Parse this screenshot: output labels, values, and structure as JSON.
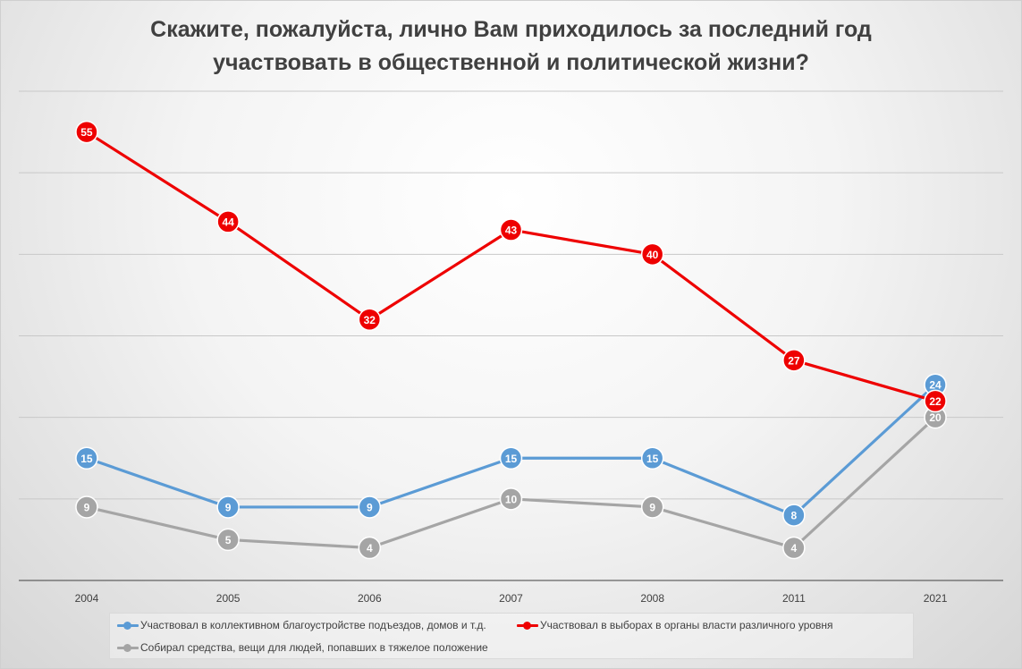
{
  "chart_data": {
    "type": "line",
    "title_lines": [
      "Скажите, пожалуйста, лично Вам приходилось за последний год",
      "участвовать в общественной и политической жизни?"
    ],
    "categories": [
      "2004",
      "2005",
      "2006",
      "2007",
      "2008",
      "2011",
      "2021"
    ],
    "ylim": [
      0,
      60
    ],
    "grid": true,
    "legend_position": "bottom",
    "series": [
      {
        "name": "Участвовал в коллективном благоустройстве подъездов, домов и т.д.",
        "color": "#5b9bd5",
        "values": [
          15,
          9,
          9,
          15,
          15,
          8,
          24
        ]
      },
      {
        "name": "Участвовал в выборах в органы власти различного уровня",
        "color": "#ee0000",
        "values": [
          55,
          44,
          32,
          43,
          40,
          27,
          22
        ]
      },
      {
        "name": "Собирал средства, вещи для людей, попавших в тяжелое положение",
        "color": "#a5a5a5",
        "values": [
          9,
          5,
          4,
          10,
          9,
          4,
          20
        ]
      }
    ]
  }
}
